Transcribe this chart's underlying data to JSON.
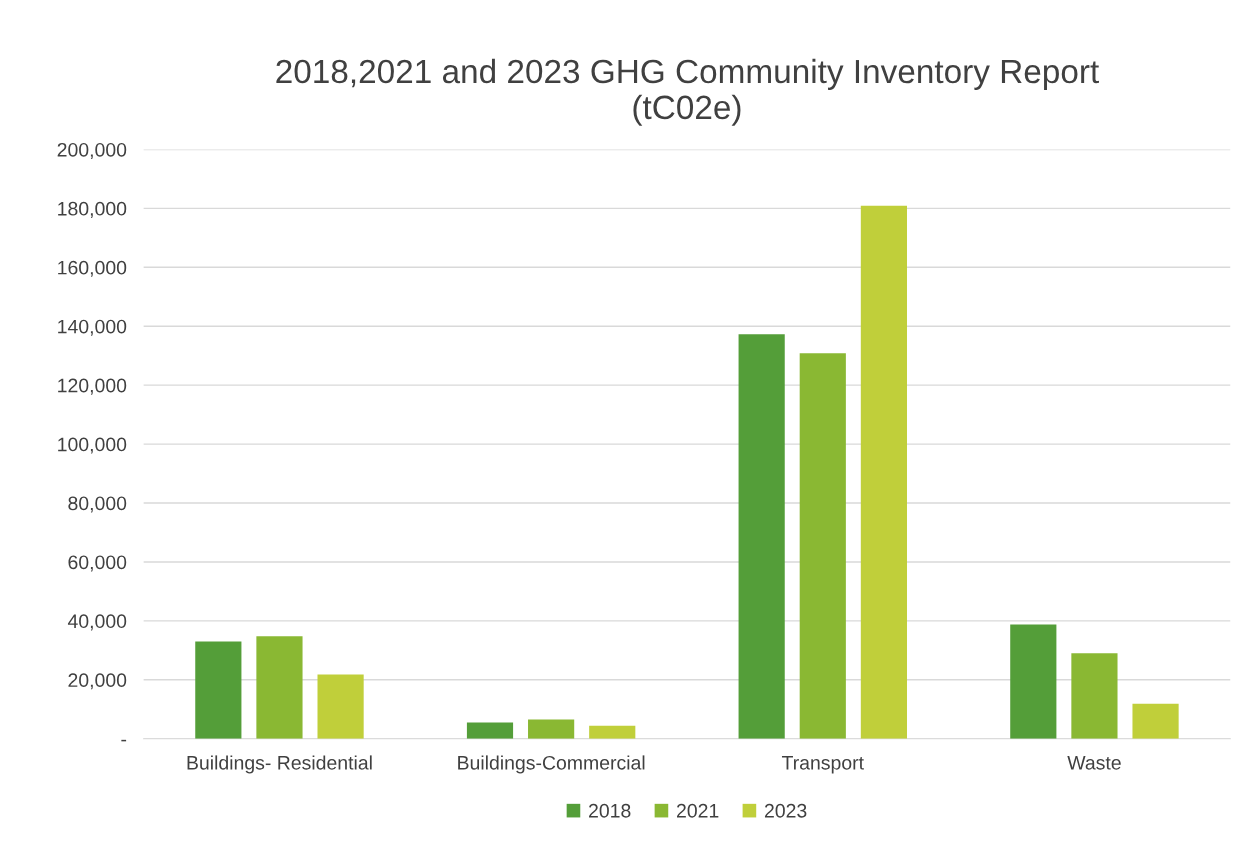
{
  "chart_data": {
    "type": "bar",
    "title": "2018,2021 and 2023 GHG Community Inventory Report\n(tC02e)",
    "categories": [
      "Buildings- Residential",
      "Buildings-Commercial",
      "Transport",
      "Waste"
    ],
    "series": [
      {
        "name": "2018",
        "color": "#549e39",
        "values": [
          33000,
          5500,
          137300,
          38800
        ]
      },
      {
        "name": "2021",
        "color": "#8ab833",
        "values": [
          34800,
          6500,
          130800,
          29000
        ]
      },
      {
        "name": "2023",
        "color": "#c0cf3a",
        "values": [
          21800,
          4400,
          180900,
          11900
        ]
      }
    ],
    "ylim": [
      0,
      200000
    ],
    "yticks": [
      {
        "value": 0,
        "label": "-"
      },
      {
        "value": 20000,
        "label": "20,000"
      },
      {
        "value": 40000,
        "label": "40,000"
      },
      {
        "value": 60000,
        "label": "60,000"
      },
      {
        "value": 80000,
        "label": "80,000"
      },
      {
        "value": 100000,
        "label": "100,000"
      },
      {
        "value": 120000,
        "label": "120,000"
      },
      {
        "value": 140000,
        "label": "140,000"
      },
      {
        "value": 160000,
        "label": "160,000"
      },
      {
        "value": 180000,
        "label": "180,000"
      },
      {
        "value": 200000,
        "label": "200,000"
      }
    ],
    "grid": "y",
    "legend": "bottom"
  }
}
